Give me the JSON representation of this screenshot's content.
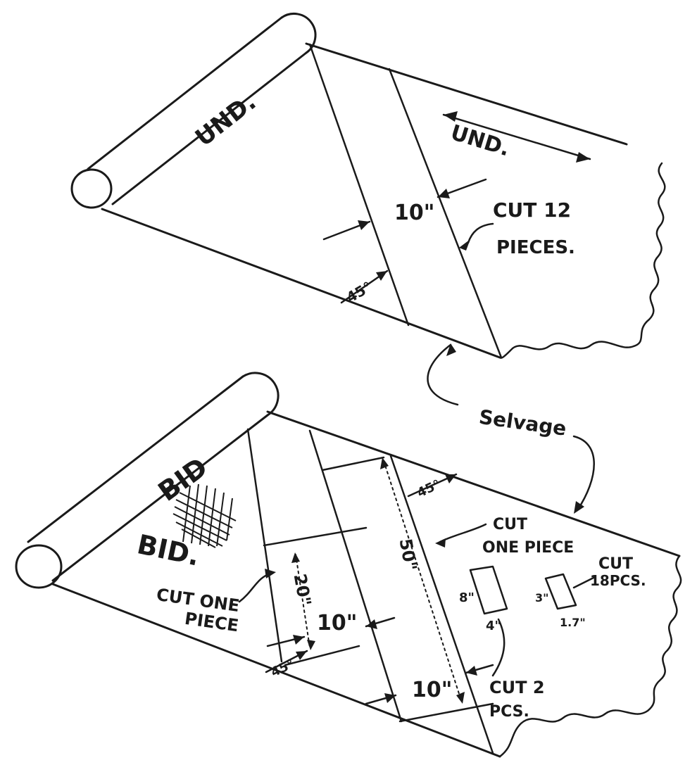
{
  "top": {
    "roll_label": "UND.",
    "direction_label": "UND.",
    "strip_width": "10\"",
    "cut_note_line1": "CUT 12",
    "cut_note_line2": "PIECES.",
    "angle": "45°"
  },
  "selvage_label": "Selvage",
  "bottom": {
    "roll_label": "BID",
    "fabric_label": "BID.",
    "cut_one_line1": "CUT ONE",
    "cut_one_line2": "PIECE",
    "cut_one_right_line1": "CUT",
    "cut_one_right_line2": "ONE PIECE",
    "dim_20": "20\"",
    "dim_50": "50\"",
    "width_10a": "10\"",
    "width_10b": "10\"",
    "angle_left": "45°",
    "angle_right": "45°",
    "cut_2_line1": "CUT 2",
    "cut_2_line2": "PCS.",
    "cut_18_line1": "CUT",
    "cut_18_line2": "18PCS.",
    "small_dim_8": "8\"",
    "small_dim_4": "4\"",
    "small_dim_3": "3\"",
    "small_dim_1_7": "1.7\""
  }
}
